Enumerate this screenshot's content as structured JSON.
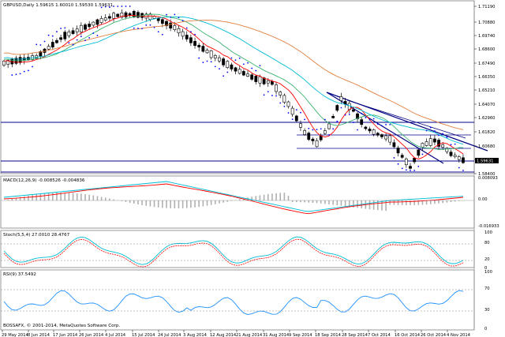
{
  "chart_header": "GBPUSD,Daily  1.59615 1.60010 1.59530 1.59631",
  "current_price": "1.59631",
  "price_axis": [
    "1.71190",
    "1.70880",
    "1.69740",
    "1.68600",
    "1.67490",
    "1.66350",
    "1.65210",
    "1.64070",
    "1.62960",
    "1.61820",
    "1.60680",
    "1.59540",
    "1.58400"
  ],
  "macd_label": "MACD(12,26,9) -0.008526 -0.004836",
  "macd_axis": [
    "0.008093",
    "0.00",
    "-0.016933"
  ],
  "stoch_label": "Stoch(5,5,4) 27.0010 28.4767",
  "stoch_axis": [
    "100",
    "80",
    "20",
    "0"
  ],
  "rsi_label": "RSI(9) 37.5492",
  "rsi_axis": [
    "100",
    "70",
    "30",
    "0"
  ],
  "copyright": "BOSSAFX, © 2001-2014, MetaQuotes Software Corp.",
  "date_axis": [
    "29 May 2014",
    "8 Jun 2014",
    "17 Jun 2014",
    "26 Jun 2014",
    "4 Jul 2014",
    "15 Jul 2014",
    "24 Jul 2014",
    "3 Aug 2014",
    "12 Aug 2014",
    "21 Aug 2014",
    "31 Aug 2014",
    "9 Sep 2014",
    "18 Sep 2014",
    "28 Sep 2014",
    "7 Oct 2014",
    "16 Oct 2014",
    "26 Oct 2014",
    "4 Nov 2014"
  ],
  "colors": {
    "bg": "#ffffff",
    "candle": "#000000",
    "level_line": "#00008b",
    "trend_line": "#000080",
    "parabolic_sar": "#0000ff",
    "ma_fast": "#ff0000",
    "ma_mid": "#3cb371",
    "ma_slow": "#00bcd4",
    "ma_long": "#e08040",
    "macd_hist": "#b0b0b0",
    "macd_line": "#00bcd4",
    "signal_line": "#ff0000",
    "rsi_line": "#1e90ff",
    "stoch_main": "#00bcd4",
    "stoch_signal": "#ff0000",
    "grid": "#808080",
    "price_tag": "#000000"
  }
}
